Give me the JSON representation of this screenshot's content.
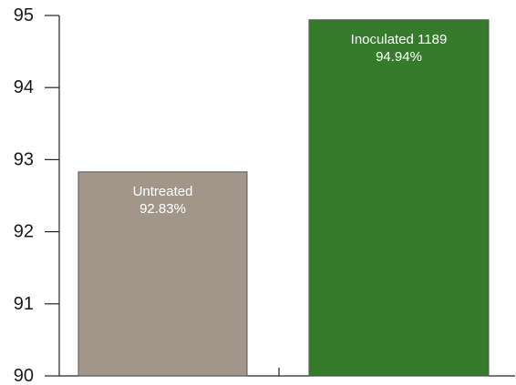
{
  "chart_data": {
    "type": "bar",
    "categories": [
      "Untreated",
      "Inoculated 1189"
    ],
    "values": [
      92.83,
      94.94
    ],
    "value_labels": [
      "92.83%",
      "94.94%"
    ],
    "colors": [
      "#a2968a",
      "#367b2c"
    ],
    "bar_border_color": "#555555",
    "title": "",
    "xlabel": "",
    "ylabel": "",
    "ylim": [
      90,
      95
    ],
    "yticks": [
      90,
      91,
      92,
      93,
      94,
      95
    ],
    "grid": false,
    "legend": "none",
    "label_placement": "inside-top"
  }
}
